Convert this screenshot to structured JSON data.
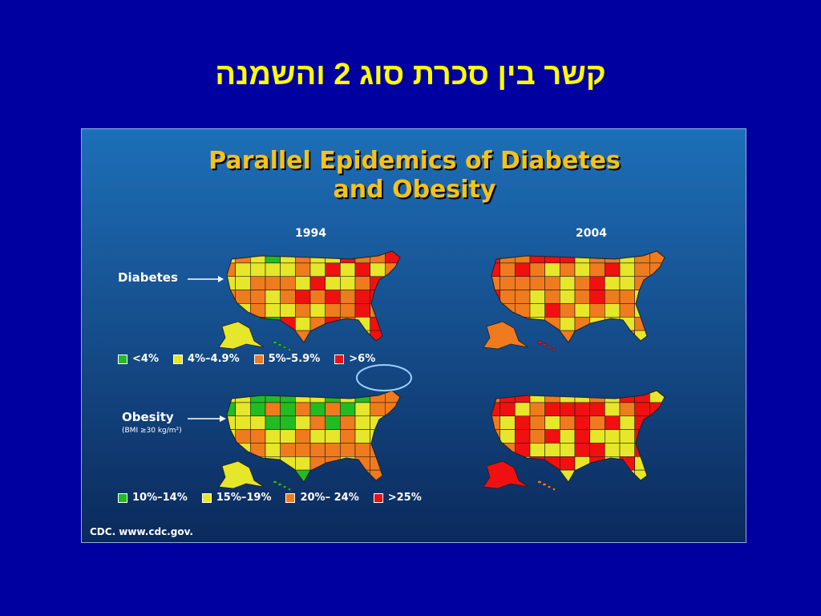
{
  "slide": {
    "title": "קשר בין סכרת סוג 2 והשמנה"
  },
  "figure": {
    "title_line1": "Parallel Epidemics of Diabetes",
    "title_line2": "and Obesity",
    "years": [
      "1994",
      "2004"
    ],
    "rows": {
      "diabetes": {
        "label": "Diabetes",
        "legend": [
          {
            "label": "<4%",
            "color": "#22bb22"
          },
          {
            "label": "4%–4.9%",
            "color": "#e6e62a"
          },
          {
            "label": "5%–5.9%",
            "color": "#f07a1e"
          },
          {
            "label": ">6%",
            "color": "#f01010"
          }
        ]
      },
      "obesity": {
        "label": "Obesity",
        "sublabel": "(BMI ≥30 kg/m²)",
        "legend": [
          {
            "label": "10%–14%",
            "color": "#22bb22"
          },
          {
            "label": "15%–19%",
            "color": "#e6e62a"
          },
          {
            "label": "20%– 24%",
            "color": "#f07a1e"
          },
          {
            "label": ">25%",
            "color": "#f01010"
          }
        ]
      }
    },
    "maps": {
      "diabetes_1994": {
        "colors": [
          "#22bb22",
          "#e6e62a",
          "#f07a1e",
          "#f01010"
        ]
      },
      "diabetes_2004": {
        "colors": [
          "#f01010",
          "#f07a1e",
          "#e6e62a"
        ]
      },
      "obesity_1994": {
        "colors": [
          "#22bb22",
          "#e6e62a",
          "#f07a1e"
        ]
      },
      "obesity_2004": {
        "colors": [
          "#f07a1e",
          "#f01010",
          "#e6e62a"
        ]
      }
    },
    "source": "CDC. www.cdc.gov."
  }
}
